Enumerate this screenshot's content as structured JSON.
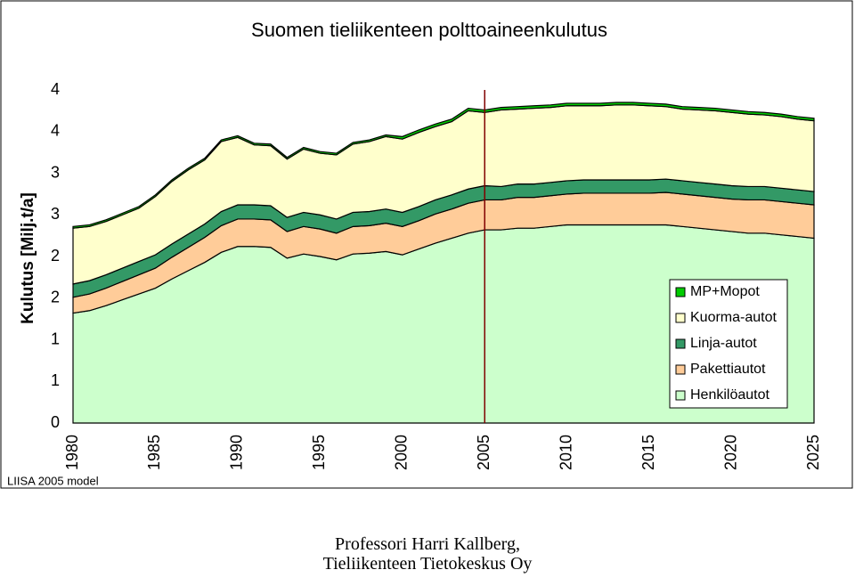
{
  "chart_data": {
    "type": "stacked-area",
    "title": "Suomen tieliikenteen polttoaineenkulutus",
    "y_label": "Kulutus [Milj.t/a]",
    "note": "LIISA 2005 model",
    "x": [
      1980,
      1981,
      1982,
      1983,
      1984,
      1985,
      1986,
      1987,
      1988,
      1989,
      1990,
      1991,
      1992,
      1993,
      1994,
      1995,
      1996,
      1997,
      1998,
      1999,
      2000,
      2001,
      2002,
      2003,
      2004,
      2005,
      2006,
      2007,
      2008,
      2009,
      2010,
      2011,
      2012,
      2013,
      2014,
      2015,
      2016,
      2017,
      2018,
      2019,
      2020,
      2021,
      2022,
      2023,
      2024,
      2025
    ],
    "xlim": [
      1980,
      2025
    ],
    "xticks": [
      1980,
      1985,
      1990,
      1995,
      2000,
      2005,
      2010,
      2015,
      2020,
      2025
    ],
    "ylim": [
      0,
      4
    ],
    "yticks": [
      0,
      {
        "value": 0.5,
        "label": "1"
      },
      {
        "value": 1,
        "label": "1"
      },
      {
        "value": 1.5,
        "label": "2"
      },
      {
        "value": 2,
        "label": "2"
      },
      {
        "value": 2.5,
        "label": "3"
      },
      {
        "value": 3,
        "label": "3"
      },
      {
        "value": 3.5,
        "label": "4"
      },
      {
        "value": 4,
        "label": "4"
      }
    ],
    "marker_x": 2005,
    "marker_color": "#800000",
    "series": [
      {
        "name": "Henkilöautot",
        "color": "#ccffcc",
        "values": [
          1.32,
          1.35,
          1.41,
          1.48,
          1.55,
          1.62,
          1.73,
          1.83,
          1.93,
          2.05,
          2.12,
          2.12,
          2.11,
          1.98,
          2.03,
          2.0,
          1.96,
          2.03,
          2.04,
          2.06,
          2.02,
          2.09,
          2.16,
          2.22,
          2.28,
          2.32,
          2.32,
          2.34,
          2.34,
          2.36,
          2.38,
          2.38,
          2.38,
          2.38,
          2.38,
          2.38,
          2.38,
          2.36,
          2.34,
          2.32,
          2.3,
          2.28,
          2.28,
          2.26,
          2.24,
          2.22
        ]
      },
      {
        "name": "Pakettiautot",
        "color": "#ffcc99",
        "values": [
          0.19,
          0.2,
          0.21,
          0.22,
          0.23,
          0.24,
          0.26,
          0.28,
          0.3,
          0.32,
          0.33,
          0.33,
          0.33,
          0.32,
          0.33,
          0.33,
          0.32,
          0.33,
          0.33,
          0.34,
          0.34,
          0.34,
          0.35,
          0.35,
          0.36,
          0.36,
          0.36,
          0.37,
          0.37,
          0.37,
          0.37,
          0.38,
          0.38,
          0.38,
          0.38,
          0.38,
          0.39,
          0.39,
          0.39,
          0.39,
          0.39,
          0.4,
          0.4,
          0.4,
          0.4,
          0.4
        ]
      },
      {
        "name": "Linja-autot",
        "color": "#339966",
        "values": [
          0.16,
          0.16,
          0.16,
          0.16,
          0.16,
          0.16,
          0.16,
          0.16,
          0.16,
          0.17,
          0.17,
          0.17,
          0.17,
          0.17,
          0.17,
          0.17,
          0.17,
          0.17,
          0.17,
          0.17,
          0.17,
          0.17,
          0.17,
          0.17,
          0.17,
          0.17,
          0.16,
          0.16,
          0.16,
          0.16,
          0.16,
          0.16,
          0.16,
          0.16,
          0.16,
          0.16,
          0.16,
          0.16,
          0.16,
          0.16,
          0.16,
          0.16,
          0.16,
          0.16,
          0.16,
          0.16
        ]
      },
      {
        "name": "Kuorma-autot",
        "color": "#ffffcc",
        "values": [
          0.67,
          0.65,
          0.64,
          0.64,
          0.64,
          0.7,
          0.75,
          0.77,
          0.77,
          0.84,
          0.81,
          0.72,
          0.72,
          0.7,
          0.76,
          0.74,
          0.77,
          0.82,
          0.84,
          0.87,
          0.88,
          0.89,
          0.88,
          0.88,
          0.94,
          0.88,
          0.92,
          0.9,
          0.91,
          0.9,
          0.9,
          0.89,
          0.89,
          0.9,
          0.9,
          0.89,
          0.87,
          0.86,
          0.87,
          0.88,
          0.88,
          0.87,
          0.86,
          0.86,
          0.85,
          0.85
        ]
      },
      {
        "name": "MP+Mopot",
        "color": "#00cc00",
        "values": [
          0.02,
          0.02,
          0.02,
          0.02,
          0.02,
          0.02,
          0.02,
          0.02,
          0.02,
          0.02,
          0.02,
          0.02,
          0.02,
          0.02,
          0.02,
          0.02,
          0.02,
          0.02,
          0.02,
          0.02,
          0.03,
          0.03,
          0.03,
          0.03,
          0.03,
          0.03,
          0.03,
          0.03,
          0.03,
          0.03,
          0.03,
          0.03,
          0.03,
          0.03,
          0.03,
          0.03,
          0.03,
          0.03,
          0.03,
          0.03,
          0.03,
          0.03,
          0.03,
          0.03,
          0.03,
          0.03
        ]
      }
    ]
  },
  "footer": [
    "Professori Harri Kallberg,",
    "Tieliikenteen Tietokeskus Oy"
  ]
}
